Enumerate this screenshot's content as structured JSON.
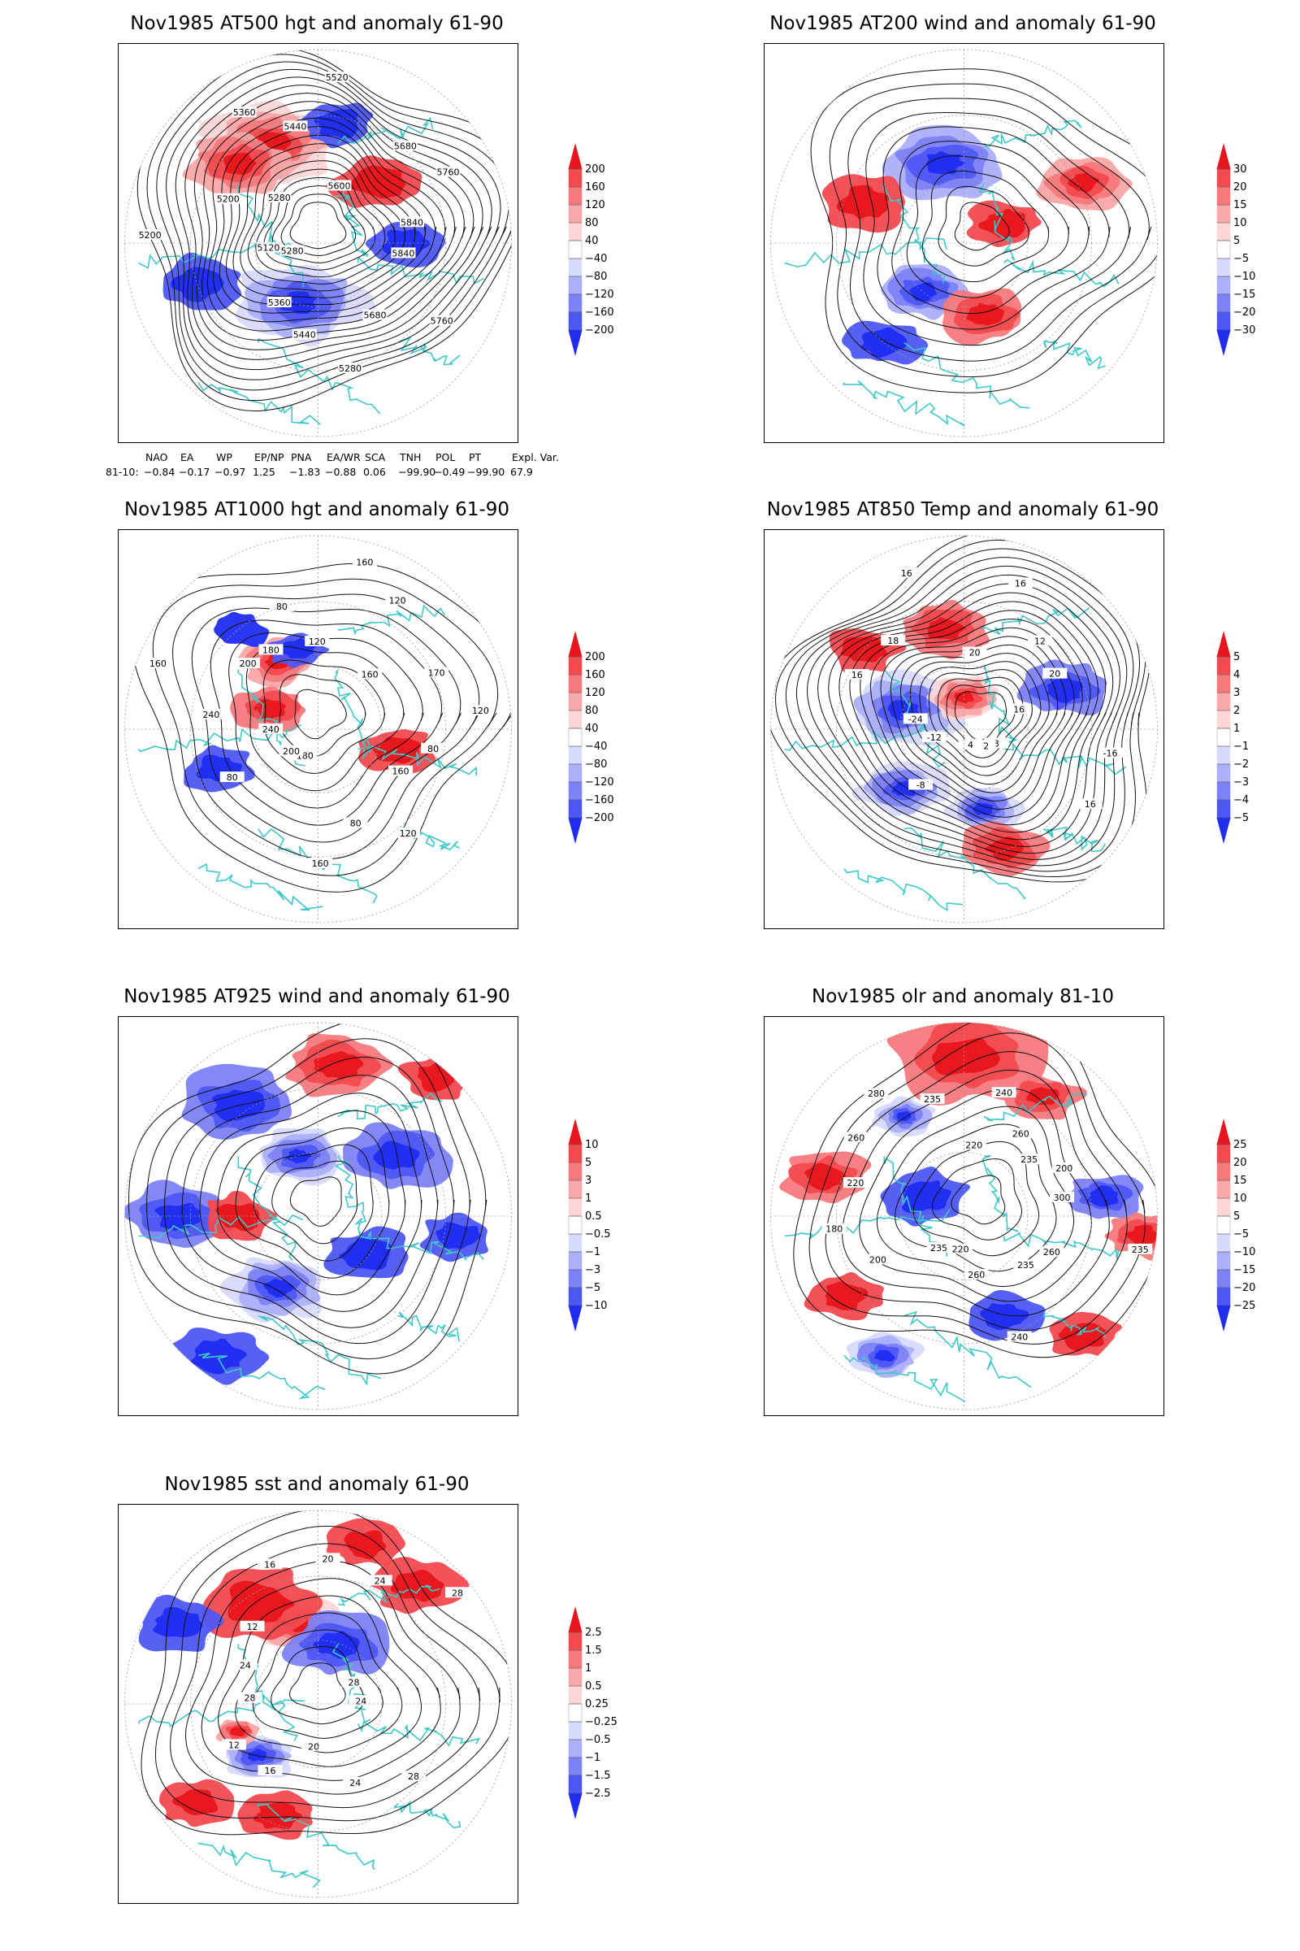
{
  "panels": [
    {
      "id": "p1",
      "title": "Nov1985 AT500 hgt and anomaly 61-90",
      "colorbar": [
        "200",
        "160",
        "120",
        "80",
        "40",
        "−40",
        "−80",
        "−120",
        "−160",
        "−200"
      ],
      "contour_labels": [
        "5840",
        "5760",
        "5680",
        "5280",
        "5440",
        "5360",
        "5280",
        "5120",
        "5200",
        "5200",
        "5280",
        "5360",
        "5440",
        "5520",
        "5600",
        "5680",
        "5760",
        "5840"
      ]
    },
    {
      "id": "p2",
      "title": "Nov1985 AT200 wind and anomaly 61-90",
      "colorbar": [
        "30",
        "20",
        "15",
        "10",
        "5",
        "−5",
        "−10",
        "−15",
        "−20",
        "−30"
      ],
      "contour_labels": []
    },
    {
      "id": "p3",
      "title": "Nov1985 AT1000 hgt and anomaly 61-90",
      "colorbar": [
        "200",
        "160",
        "120",
        "80",
        "40",
        "−40",
        "−80",
        "−120",
        "−160",
        "−200"
      ],
      "contour_labels": [
        "80",
        "160",
        "120",
        "80",
        "160",
        "180",
        "200",
        "80",
        "240",
        "240",
        "160",
        "200",
        "180",
        "80",
        "120",
        "160",
        "120",
        "160",
        "170",
        "120"
      ]
    },
    {
      "id": "p4",
      "title": "Nov1985 AT850 Temp and anomaly 61-90",
      "colorbar": [
        "5",
        "4",
        "3",
        "2",
        "1",
        "−1",
        "−2",
        "−3",
        "−4",
        "−5"
      ],
      "contour_labels": [
        "-16",
        "16",
        "8",
        "12",
        "4",
        "-8",
        "-12",
        "-24",
        "16",
        "18",
        "16",
        "20",
        "16",
        "12",
        "20",
        "16"
      ]
    },
    {
      "id": "p5",
      "title": "Nov1985 AT925 wind and anomaly 61-90",
      "colorbar": [
        "10",
        "5",
        "3",
        "1",
        "0.5",
        "−0.5",
        "−1",
        "−3",
        "−5",
        "−10"
      ],
      "contour_labels": []
    },
    {
      "id": "p6",
      "title": "Nov1985 olr and anomaly 81-10",
      "colorbar": [
        "25",
        "20",
        "15",
        "10",
        "5",
        "−5",
        "−10",
        "−15",
        "−20",
        "−25"
      ],
      "contour_labels": [
        "235",
        "260",
        "235",
        "240",
        "260",
        "220",
        "235",
        "200",
        "180",
        "220",
        "260",
        "280",
        "235",
        "220",
        "240",
        "260",
        "235",
        "200",
        "300"
      ]
    },
    {
      "id": "p7",
      "title": "Nov1985 sst and anomaly 61-90",
      "colorbar": [
        "2.5",
        "1.5",
        "1",
        "0.5",
        "0.25",
        "−0.25",
        "−0.5",
        "−1",
        "−1.5",
        "−2.5"
      ],
      "contour_labels": [
        "24",
        "28",
        "24",
        "20",
        "16",
        "12",
        "28",
        "24",
        "12",
        "16",
        "20",
        "24",
        "28",
        "28"
      ]
    }
  ],
  "teleconnection": {
    "headers": [
      "NAO",
      "EA",
      "WP",
      "EP/NP",
      "PNA",
      "EA/WR",
      "SCA",
      "TNH",
      "POL",
      "PT",
      "Expl. Var."
    ],
    "row_label": "81-10:",
    "values": [
      "−0.84",
      "−0.17",
      "−0.97",
      "1.25",
      "−1.83",
      "−0.88",
      "0.06",
      "−99.90",
      "−0.49",
      "−99.90",
      "67.9"
    ]
  },
  "colors": {
    "coastline": "#3fc8c8",
    "contour": "#111111",
    "positive_max": "#e8151c",
    "negative_max": "#1f2cf2"
  },
  "anomaly_fields": {
    "p1": [
      [
        0.38,
        0.25,
        0.09,
        1.0
      ],
      [
        0.3,
        0.3,
        0.07,
        0.8
      ],
      [
        0.45,
        0.65,
        0.09,
        -1.0
      ],
      [
        0.2,
        0.6,
        0.06,
        -0.4
      ],
      [
        0.65,
        0.35,
        0.06,
        0.4
      ],
      [
        0.72,
        0.5,
        0.05,
        -0.3
      ],
      [
        0.55,
        0.2,
        0.05,
        -0.3
      ]
    ],
    "p2": [
      [
        0.45,
        0.3,
        0.08,
        -0.8
      ],
      [
        0.4,
        0.62,
        0.06,
        -0.8
      ],
      [
        0.8,
        0.35,
        0.06,
        0.7
      ],
      [
        0.55,
        0.68,
        0.06,
        0.5
      ],
      [
        0.25,
        0.4,
        0.06,
        0.4
      ],
      [
        0.6,
        0.45,
        0.05,
        0.3
      ],
      [
        0.3,
        0.75,
        0.05,
        -0.3
      ]
    ],
    "p3": [
      [
        0.4,
        0.33,
        0.05,
        0.7
      ],
      [
        0.38,
        0.45,
        0.05,
        0.6
      ],
      [
        0.45,
        0.3,
        0.04,
        -0.3
      ],
      [
        0.7,
        0.55,
        0.05,
        0.3
      ],
      [
        0.25,
        0.6,
        0.05,
        -0.3
      ],
      [
        0.3,
        0.25,
        0.04,
        -0.2
      ]
    ],
    "p4": [
      [
        0.35,
        0.45,
        0.08,
        -1.0
      ],
      [
        0.35,
        0.65,
        0.06,
        -0.9
      ],
      [
        0.55,
        0.7,
        0.05,
        -1.0
      ],
      [
        0.5,
        0.42,
        0.05,
        0.9
      ],
      [
        0.75,
        0.4,
        0.06,
        -0.6
      ],
      [
        0.6,
        0.8,
        0.06,
        0.6
      ],
      [
        0.25,
        0.3,
        0.05,
        0.4
      ],
      [
        0.45,
        0.25,
        0.06,
        0.5
      ]
    ],
    "p5": [
      [
        0.3,
        0.22,
        0.08,
        -0.6
      ],
      [
        0.45,
        0.35,
        0.06,
        -1.0
      ],
      [
        0.55,
        0.12,
        0.07,
        0.5
      ],
      [
        0.4,
        0.68,
        0.07,
        -0.9
      ],
      [
        0.15,
        0.5,
        0.07,
        -0.6
      ],
      [
        0.7,
        0.35,
        0.07,
        -0.5
      ],
      [
        0.25,
        0.85,
        0.06,
        -0.4
      ],
      [
        0.8,
        0.15,
        0.05,
        0.4
      ],
      [
        0.62,
        0.6,
        0.06,
        -0.4
      ],
      [
        0.3,
        0.5,
        0.05,
        0.3
      ],
      [
        0.85,
        0.55,
        0.05,
        -0.3
      ]
    ],
    "p6": [
      [
        0.35,
        0.25,
        0.04,
        -1.0
      ],
      [
        0.3,
        0.85,
        0.05,
        -0.9
      ],
      [
        0.5,
        0.1,
        0.1,
        0.6
      ],
      [
        0.15,
        0.4,
        0.06,
        0.5
      ],
      [
        0.85,
        0.45,
        0.05,
        -0.5
      ],
      [
        0.95,
        0.55,
        0.05,
        0.6
      ],
      [
        0.7,
        0.2,
        0.05,
        0.5
      ],
      [
        0.4,
        0.45,
        0.06,
        -0.4
      ],
      [
        0.2,
        0.7,
        0.05,
        0.4
      ],
      [
        0.6,
        0.75,
        0.05,
        -0.3
      ],
      [
        0.8,
        0.8,
        0.05,
        0.4
      ]
    ],
    "p7": [
      [
        0.45,
        0.3,
        0.06,
        1.0
      ],
      [
        0.55,
        0.35,
        0.07,
        -0.6
      ],
      [
        0.35,
        0.25,
        0.08,
        0.4
      ],
      [
        0.35,
        0.63,
        0.05,
        -1.0
      ],
      [
        0.3,
        0.57,
        0.03,
        0.8
      ],
      [
        0.15,
        0.3,
        0.06,
        -0.4
      ],
      [
        0.75,
        0.2,
        0.06,
        0.3
      ],
      [
        0.4,
        0.78,
        0.05,
        0.4
      ],
      [
        0.2,
        0.75,
        0.05,
        0.3
      ],
      [
        0.62,
        0.1,
        0.05,
        0.3
      ]
    ]
  }
}
